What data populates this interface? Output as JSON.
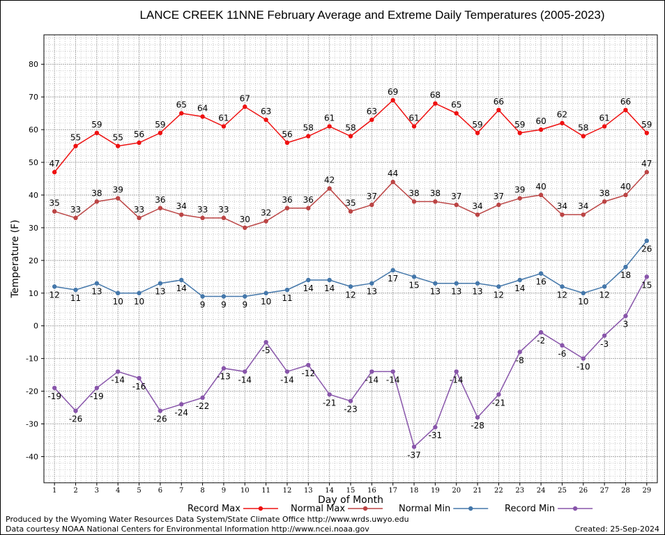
{
  "footer": {
    "produced_by": "Produced by the Wyoming Water Resources Data System/State Climate Office http://www.wrds.uwyo.edu",
    "data_courtesy": "Data courtesy NOAA National Centers for Environmental Information http://www.ncei.noaa.gov",
    "created": "Created: 25-Sep-2024"
  },
  "chart_data": {
    "type": "line",
    "title": "LANCE CREEK 11NNE February Average and Extreme Daily Temperatures (2005-2023)",
    "xlabel": "Day of Month",
    "ylabel": "Temperature (F)",
    "x": [
      1,
      2,
      3,
      4,
      5,
      6,
      7,
      8,
      9,
      10,
      11,
      12,
      13,
      14,
      15,
      16,
      17,
      18,
      19,
      20,
      21,
      22,
      23,
      24,
      25,
      26,
      27,
      28,
      29
    ],
    "xlim": [
      0.5,
      29.5
    ],
    "ylim": [
      -48,
      89
    ],
    "yticks": [
      -40,
      -30,
      -20,
      -10,
      0,
      10,
      20,
      30,
      40,
      50,
      60,
      70,
      80
    ],
    "grid": true,
    "legend_position": "bottom",
    "series": [
      {
        "name": "Record Max",
        "color": "#ee1111",
        "label_pos": "above",
        "values": [
          47,
          55,
          59,
          55,
          56,
          59,
          65,
          64,
          61,
          67,
          63,
          56,
          58,
          61,
          58,
          63,
          69,
          61,
          68,
          65,
          59,
          66,
          59,
          60,
          62,
          58,
          61,
          66,
          59
        ]
      },
      {
        "name": "Normal Max",
        "color": "#bb4444",
        "label_pos": "above",
        "values": [
          35,
          33,
          38,
          39,
          33,
          36,
          34,
          33,
          33,
          30,
          32,
          36,
          36,
          42,
          35,
          37,
          44,
          38,
          38,
          37,
          34,
          37,
          39,
          40,
          34,
          34,
          38,
          40,
          47
        ]
      },
      {
        "name": "Normal Min",
        "color": "#4477aa",
        "label_pos": "below",
        "values": [
          12,
          11,
          13,
          10,
          10,
          13,
          14,
          9,
          9,
          9,
          10,
          11,
          14,
          14,
          12,
          13,
          17,
          15,
          13,
          13,
          13,
          12,
          14,
          16,
          12,
          10,
          12,
          18,
          26
        ]
      },
      {
        "name": "Record Min",
        "color": "#8855aa",
        "label_pos": "below",
        "values": [
          -19,
          -26,
          -19,
          -14,
          -16,
          -26,
          -24,
          -22,
          -13,
          -14,
          -5,
          -14,
          -12,
          -21,
          -23,
          -14,
          -14,
          -37,
          -31,
          -14,
          -28,
          -21,
          -8,
          -2,
          -6,
          -10,
          -3,
          3,
          15
        ]
      }
    ]
  }
}
